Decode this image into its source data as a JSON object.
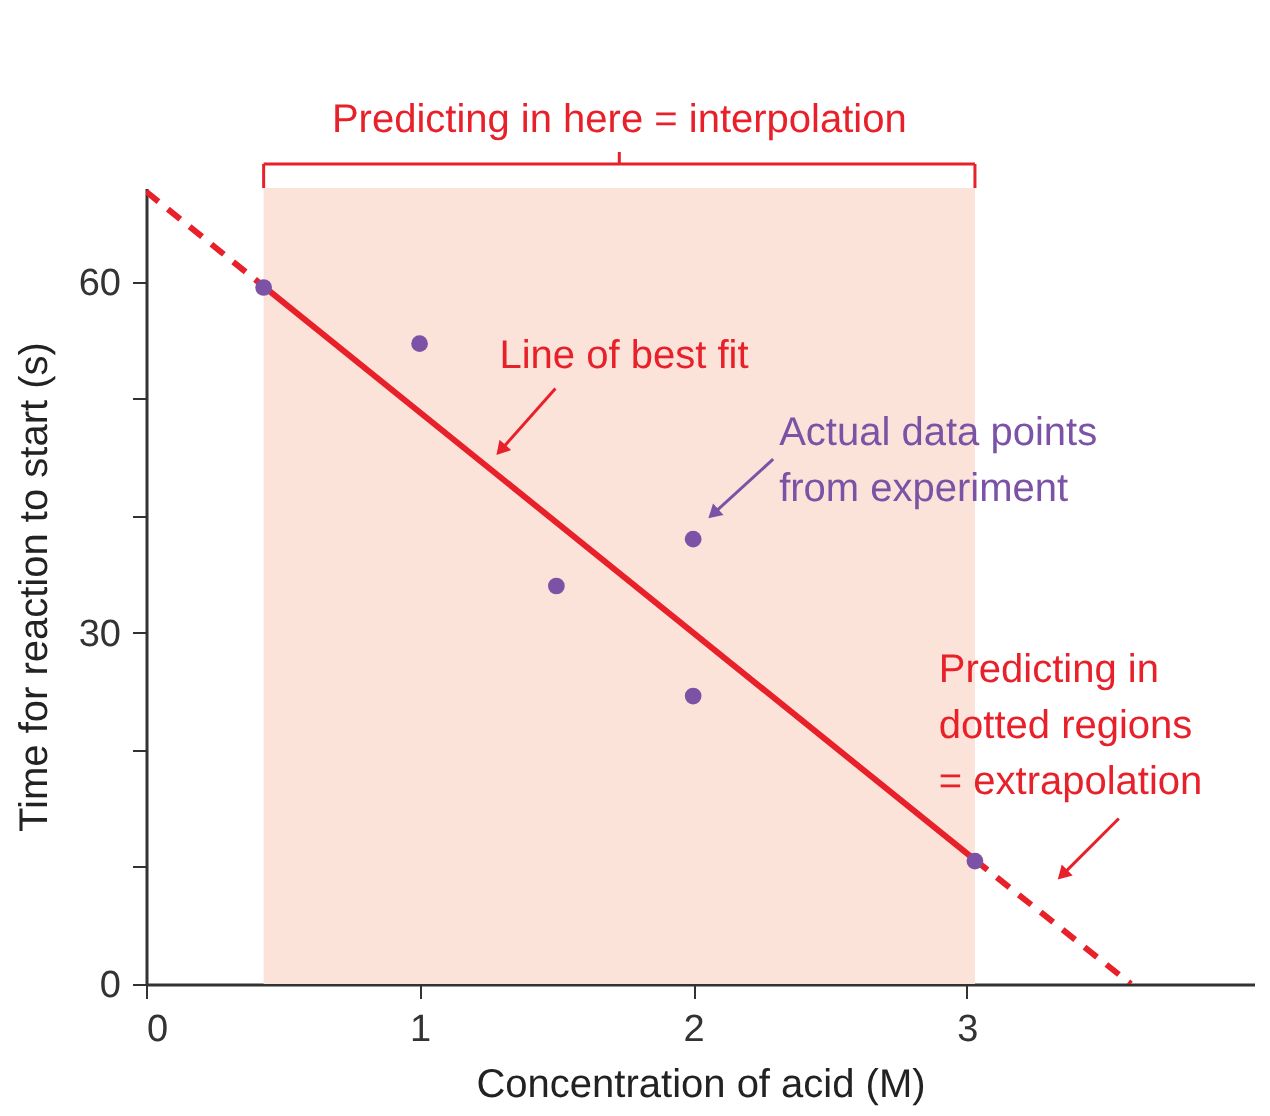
{
  "chart_data": {
    "type": "scatter",
    "xlabel": "Concentration of acid (M)",
    "ylabel": "Time for reaction to start (s)",
    "xlim": [
      0,
      4.05
    ],
    "ylim": [
      0,
      68
    ],
    "xticks": [
      0,
      1,
      2,
      3
    ],
    "yticks": [
      0,
      {
        "value": 10,
        "label": null
      },
      {
        "value": 20,
        "label": null
      },
      30,
      {
        "value": 40,
        "label": null
      },
      {
        "value": 50,
        "label": null
      },
      60
    ],
    "grid": false,
    "series": [
      {
        "color": "#7b52a6",
        "marker": "circle",
        "x": [
          0.43,
          1,
          1.5,
          2,
          2,
          3.03
        ],
        "values": [
          59.5,
          54.7,
          34,
          38,
          24.6,
          10.5
        ]
      },
      {
        "type": "line",
        "color": "#e8202a",
        "line_style": "dashed",
        "x": [
          0,
          0.43
        ],
        "values": [
          67.7,
          59.6
        ]
      },
      {
        "type": "line",
        "color": "#e8202a",
        "line_style": "solid",
        "x": [
          0.43,
          3.03
        ],
        "values": [
          59.6,
          10.6
        ]
      },
      {
        "type": "line",
        "color": "#e8202a",
        "line_style": "dashed",
        "x": [
          3.03,
          3.6
        ],
        "values": [
          10.6,
          0
        ]
      }
    ],
    "bands": [
      {
        "axis": "x",
        "from": 0.43,
        "to": 3.03,
        "label": "Predicting in here = interpolation",
        "color": "#fbe3d9"
      }
    ],
    "annotations": [
      {
        "text": "Line of best fit",
        "x": 1.27,
        "y": 44.9
      },
      {
        "text": "Actual data points\nfrom experiment",
        "x": 2,
        "y": 38
      },
      {
        "text": "Predicting in\ndotted regions\n= extrapolation",
        "x": 3.3,
        "y": 5.6
      }
    ]
  }
}
